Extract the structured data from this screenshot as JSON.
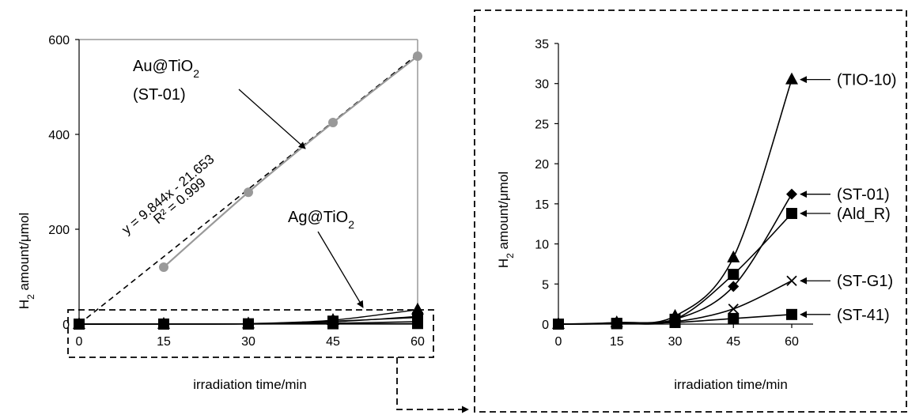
{
  "chart_data": [
    {
      "type": "line",
      "xlabel": "irradiation time/min",
      "ylabel": "H",
      "ylabel_sub": "2",
      "ylabel_rest": " amount/μmol",
      "x": [
        0,
        15,
        30,
        45,
        60
      ],
      "xlim": [
        0,
        60
      ],
      "ylim": [
        0,
        600
      ],
      "yticks": [
        0,
        200,
        400,
        600
      ],
      "xticks": [
        0,
        15,
        30,
        45,
        60
      ],
      "grid": false,
      "series": [
        {
          "name": "Au@TiO2 (ST-01)",
          "x": [
            15,
            30,
            45,
            60
          ],
          "values": [
            120,
            278,
            425,
            565
          ],
          "color": "#999999",
          "marker": "circle"
        },
        {
          "name": "TIO-10",
          "x": [
            0,
            15,
            30,
            45,
            60
          ],
          "values": [
            0,
            0.2,
            1.0,
            8.3,
            30.5
          ],
          "color": "#000000",
          "marker": "triangle"
        },
        {
          "name": "ST-01",
          "x": [
            0,
            15,
            30,
            45,
            60
          ],
          "values": [
            0,
            0.1,
            0.6,
            4.7,
            16.2
          ],
          "color": "#000000",
          "marker": "diamond"
        },
        {
          "name": "Ald_R",
          "x": [
            0,
            15,
            30,
            45,
            60
          ],
          "values": [
            0,
            0.1,
            0.6,
            6.2,
            13.8
          ],
          "color": "#000000",
          "marker": "square"
        },
        {
          "name": "ST-G1",
          "x": [
            0,
            15,
            30,
            45,
            60
          ],
          "values": [
            0,
            0.05,
            0.3,
            1.9,
            5.4
          ],
          "color": "#000000",
          "marker": "x"
        },
        {
          "name": "ST-41",
          "x": [
            0,
            15,
            30,
            45,
            60
          ],
          "values": [
            0,
            0.05,
            0.2,
            0.7,
            1.2
          ],
          "color": "#000000",
          "marker": "square"
        }
      ],
      "trendline": {
        "x": [
          0,
          60
        ],
        "slope": 9.844,
        "intercept": -21.653,
        "style": "dashed"
      },
      "annotations": {
        "au_line1_a": "Au@TiO",
        "au_line1_sub": "2",
        "au_line2": "(ST-01)",
        "ag_a": "Ag@TiO",
        "ag_sub": "2",
        "equation": "y = 9.844x - 21.653",
        "r2": "R² = 0.999"
      }
    },
    {
      "type": "line",
      "xlabel": "irradiation time/min",
      "ylabel": "H",
      "ylabel_sub": "2",
      "ylabel_rest": " amount/μmol",
      "x": [
        0,
        15,
        30,
        45,
        60
      ],
      "xlim": [
        0,
        60
      ],
      "ylim": [
        0,
        35
      ],
      "yticks": [
        0,
        5,
        10,
        15,
        20,
        25,
        30,
        35
      ],
      "xticks": [
        0,
        15,
        30,
        45,
        60
      ],
      "grid": false,
      "series": [
        {
          "name": "(TIO-10)",
          "x": [
            0,
            15,
            30,
            45,
            60
          ],
          "values": [
            0,
            0.2,
            1.0,
            8.3,
            30.5
          ],
          "marker": "triangle"
        },
        {
          "name": "(ST-01)",
          "x": [
            0,
            15,
            30,
            45,
            60
          ],
          "values": [
            0,
            0.1,
            0.6,
            4.7,
            16.2
          ],
          "marker": "diamond"
        },
        {
          "name": "(Ald_R)",
          "x": [
            0,
            15,
            30,
            45,
            60
          ],
          "values": [
            0,
            0.1,
            0.6,
            6.2,
            13.8
          ],
          "marker": "square"
        },
        {
          "name": "(ST-G1)",
          "x": [
            0,
            15,
            30,
            45,
            60
          ],
          "values": [
            0,
            0.05,
            0.3,
            1.9,
            5.4
          ],
          "marker": "x"
        },
        {
          "name": "(ST-41)",
          "x": [
            0,
            15,
            30,
            45,
            60
          ],
          "values": [
            0,
            0.05,
            0.2,
            0.7,
            1.2
          ],
          "marker": "square"
        }
      ]
    }
  ]
}
